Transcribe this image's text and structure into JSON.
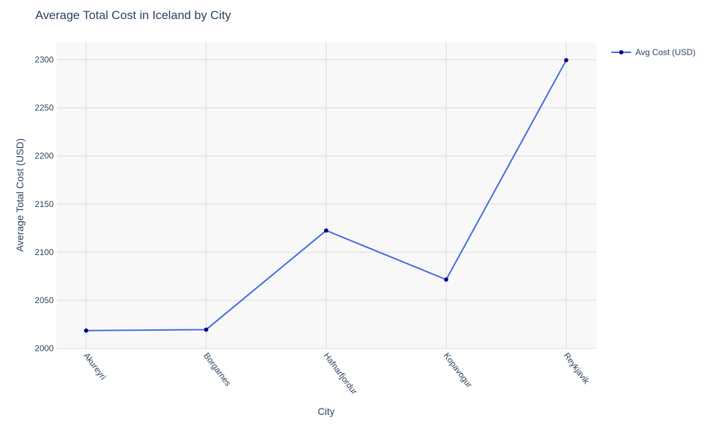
{
  "chart_data": {
    "type": "line",
    "title": "Average Total Cost in Iceland by City",
    "xlabel": "City",
    "ylabel": "Average Total Cost (USD)",
    "categories": [
      "Akureyri",
      "Borgarnes",
      "Hafnarfjordur",
      "Kopavogur",
      "Reykjavik"
    ],
    "series": [
      {
        "name": "Avg Cost (USD)",
        "values": [
          2018.5,
          2019.5,
          2122.5,
          2071.5,
          2299.5
        ]
      }
    ],
    "ylim": [
      2000,
      2318
    ],
    "yticks": [
      2000,
      2050,
      2100,
      2150,
      2200,
      2250,
      2300
    ],
    "ytick_labels": [
      "2000",
      "2050",
      "2100",
      "2150",
      "2200",
      "2250",
      "2300"
    ],
    "grid": true,
    "legend_position": "top-right",
    "colors": {
      "line": "#4169e1",
      "marker": "#00008b",
      "plot_bg": "#f8f8f8",
      "grid": "#d9d9d9",
      "text": "#2a3f5f"
    }
  }
}
